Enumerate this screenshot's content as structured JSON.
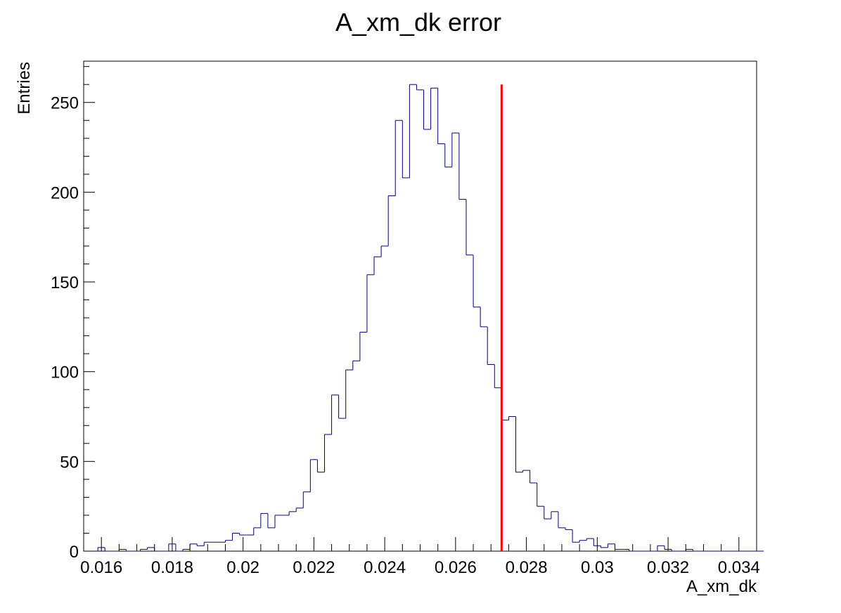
{
  "chart_data": {
    "type": "bar",
    "title": "A_xm_dk error",
    "xlabel": "A_xm_dk",
    "ylabel": "Entries",
    "xlim": [
      0.0155,
      0.0345
    ],
    "ylim": [
      0,
      273
    ],
    "bin_width": 0.0002,
    "bin_start": 0.0155,
    "x_ticks": [
      0.016,
      0.018,
      0.02,
      0.022,
      0.024,
      0.026,
      0.028,
      0.03,
      0.032,
      0.034
    ],
    "x_tick_labels": [
      "0.016",
      "0.018",
      "0.02",
      "0.022",
      "0.024",
      "0.026",
      "0.028",
      "0.03",
      "0.032",
      "0.034"
    ],
    "y_ticks": [
      0,
      50,
      100,
      150,
      200,
      250
    ],
    "y_tick_labels": [
      "0",
      "50",
      "100",
      "150",
      "200",
      "250"
    ],
    "values": [
      0,
      0,
      2,
      0,
      0,
      1,
      0,
      0,
      1,
      2,
      0,
      0,
      4,
      0,
      1,
      4,
      3,
      5,
      5,
      5,
      6,
      10,
      9,
      9,
      13,
      21,
      13,
      20,
      20,
      22,
      24,
      33,
      51,
      44,
      65,
      87,
      74,
      101,
      106,
      122,
      154,
      164,
      170,
      198,
      240,
      208,
      260,
      257,
      235,
      258,
      227,
      214,
      233,
      196,
      165,
      136,
      125,
      104,
      91,
      73,
      75,
      44,
      45,
      38,
      25,
      18,
      22,
      13,
      12,
      5,
      6,
      7,
      3,
      2,
      4,
      1,
      1,
      0,
      0,
      0,
      0,
      3,
      1,
      0,
      0,
      1,
      0,
      0,
      0,
      0,
      0,
      0,
      0,
      0,
      0,
      0
    ],
    "line_color": "#000080",
    "marker_line": {
      "x": 0.0273,
      "y_top": 260,
      "color": "#ff0000"
    },
    "grid": false,
    "legend": "none"
  }
}
